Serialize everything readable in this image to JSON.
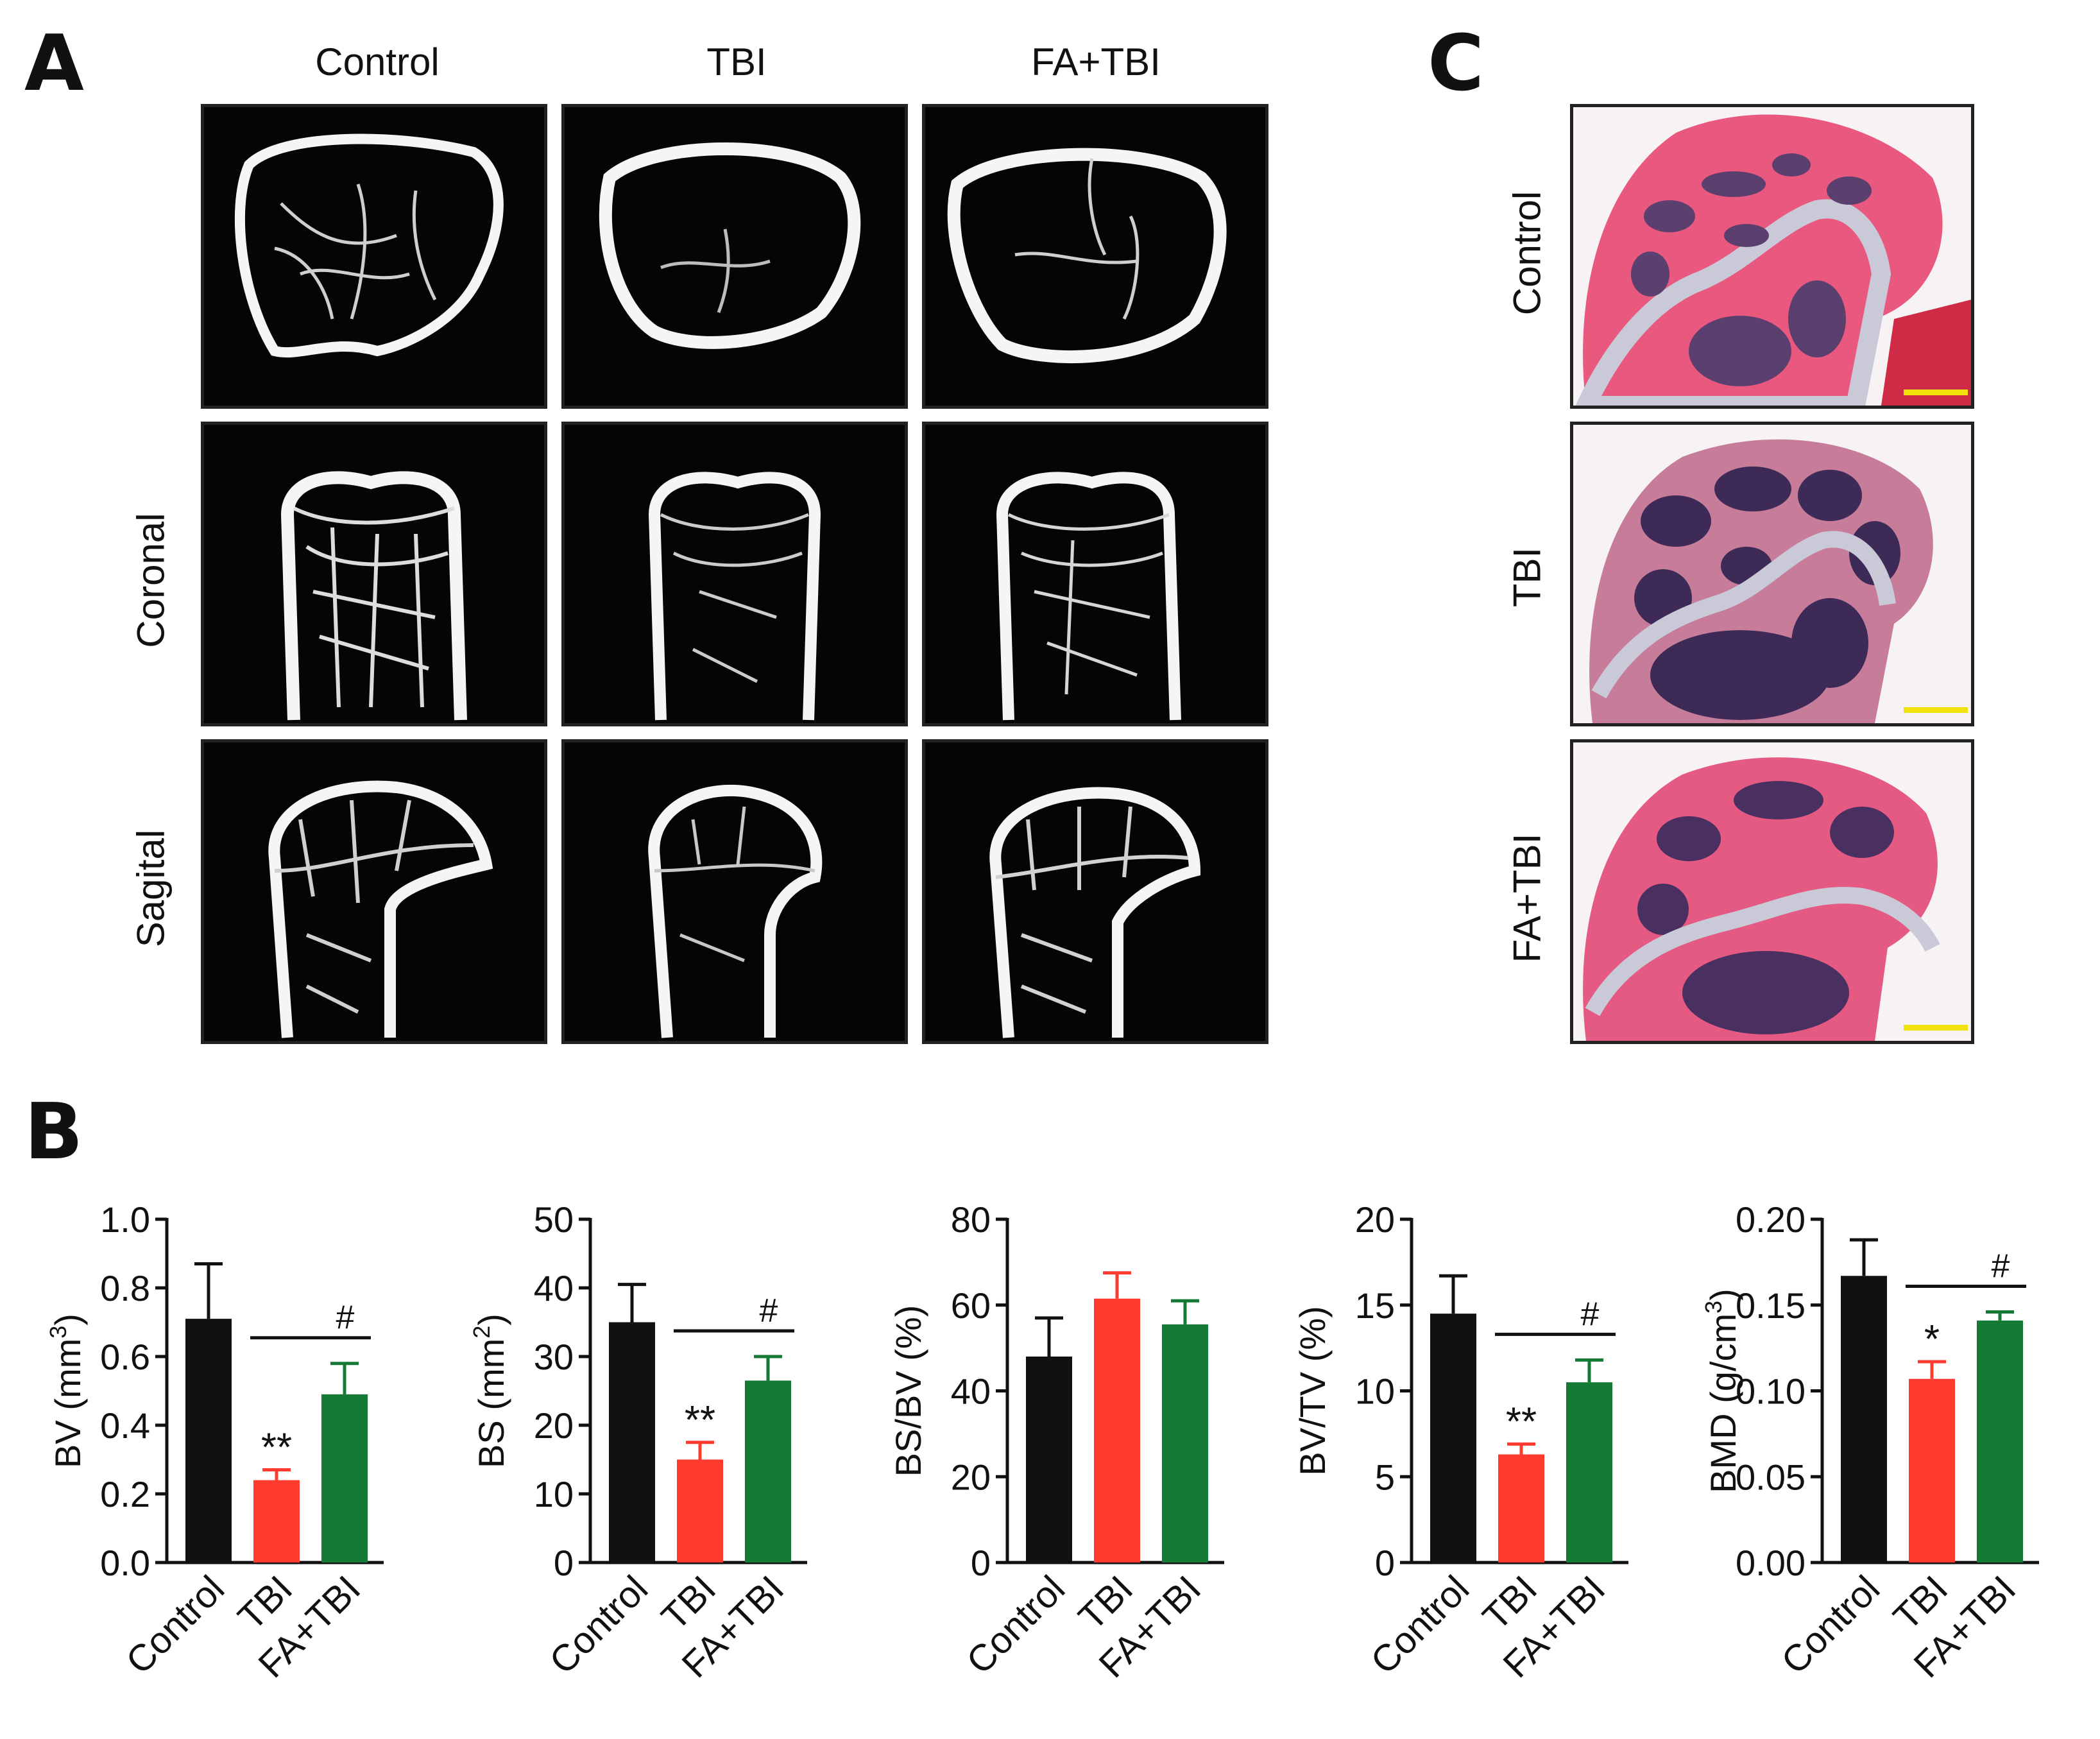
{
  "panels": {
    "a": {
      "letter": "A",
      "columns": [
        "Control",
        "TBI",
        "FA+TBI"
      ],
      "rows": [
        "",
        "Coronal",
        "Sagital"
      ]
    },
    "b": {
      "letter": "B"
    },
    "c": {
      "letter": "C",
      "rows": [
        "Control",
        "TBI",
        "FA+TBI"
      ]
    }
  },
  "colors": {
    "control": "#111111",
    "tbi": "#ff3b30",
    "fa_tbi": "#157a35"
  },
  "chart_data": [
    {
      "type": "bar",
      "categories": [
        "Control",
        "TBI",
        "FA+TBI"
      ],
      "values": [
        0.71,
        0.24,
        0.49
      ],
      "errors": [
        0.16,
        0.03,
        0.09
      ],
      "ylabel": "BV (mm",
      "ylabel_sup": "3",
      "ylabel_end": ")",
      "ylim": [
        0,
        1.0
      ],
      "yticks": [
        "0.0",
        "0.2",
        "0.4",
        "0.6",
        "0.8",
        "1.0"
      ],
      "annotations": [
        "",
        "**",
        ""
      ],
      "bracket_label": "#"
    },
    {
      "type": "bar",
      "categories": [
        "Control",
        "TBI",
        "FA+TBI"
      ],
      "values": [
        35,
        15,
        26.5
      ],
      "errors": [
        5.5,
        2.5,
        3.5
      ],
      "ylabel": "BS (mm",
      "ylabel_sup": "2",
      "ylabel_end": ")",
      "ylim": [
        0,
        50
      ],
      "yticks": [
        "0",
        "10",
        "20",
        "30",
        "40",
        "50"
      ],
      "annotations": [
        "",
        "**",
        ""
      ],
      "bracket_label": "#"
    },
    {
      "type": "bar",
      "categories": [
        "Control",
        "TBI",
        "FA+TBI"
      ],
      "values": [
        48,
        61.5,
        55.5
      ],
      "errors": [
        9,
        6,
        5.5
      ],
      "ylabel": "BS/BV (%)",
      "ylabel_sup": "",
      "ylabel_end": "",
      "ylim": [
        0,
        80
      ],
      "yticks": [
        "0",
        "20",
        "40",
        "60",
        "80"
      ],
      "annotations": [
        "",
        "",
        ""
      ],
      "bracket_label": ""
    },
    {
      "type": "bar",
      "categories": [
        "Control",
        "TBI",
        "FA+TBI"
      ],
      "values": [
        14.5,
        6.3,
        10.5
      ],
      "errors": [
        2.2,
        0.6,
        1.3
      ],
      "ylabel": "BV/TV (%)",
      "ylabel_sup": "",
      "ylabel_end": "",
      "ylim": [
        0,
        20
      ],
      "yticks": [
        "0",
        "5",
        "10",
        "15",
        "20"
      ],
      "annotations": [
        "",
        "**",
        ""
      ],
      "bracket_label": "#"
    },
    {
      "type": "bar",
      "categories": [
        "Control",
        "TBI",
        "FA+TBI"
      ],
      "values": [
        0.167,
        0.107,
        0.141
      ],
      "errors": [
        0.021,
        0.01,
        0.005
      ],
      "ylabel": "BMD (g/cm",
      "ylabel_sup": "3",
      "ylabel_end": ")",
      "ylim": [
        0,
        0.2
      ],
      "yticks": [
        "0.00",
        "0.05",
        "0.10",
        "0.15",
        "0.20"
      ],
      "annotations": [
        "",
        "*",
        ""
      ],
      "bracket_label": "#"
    }
  ]
}
